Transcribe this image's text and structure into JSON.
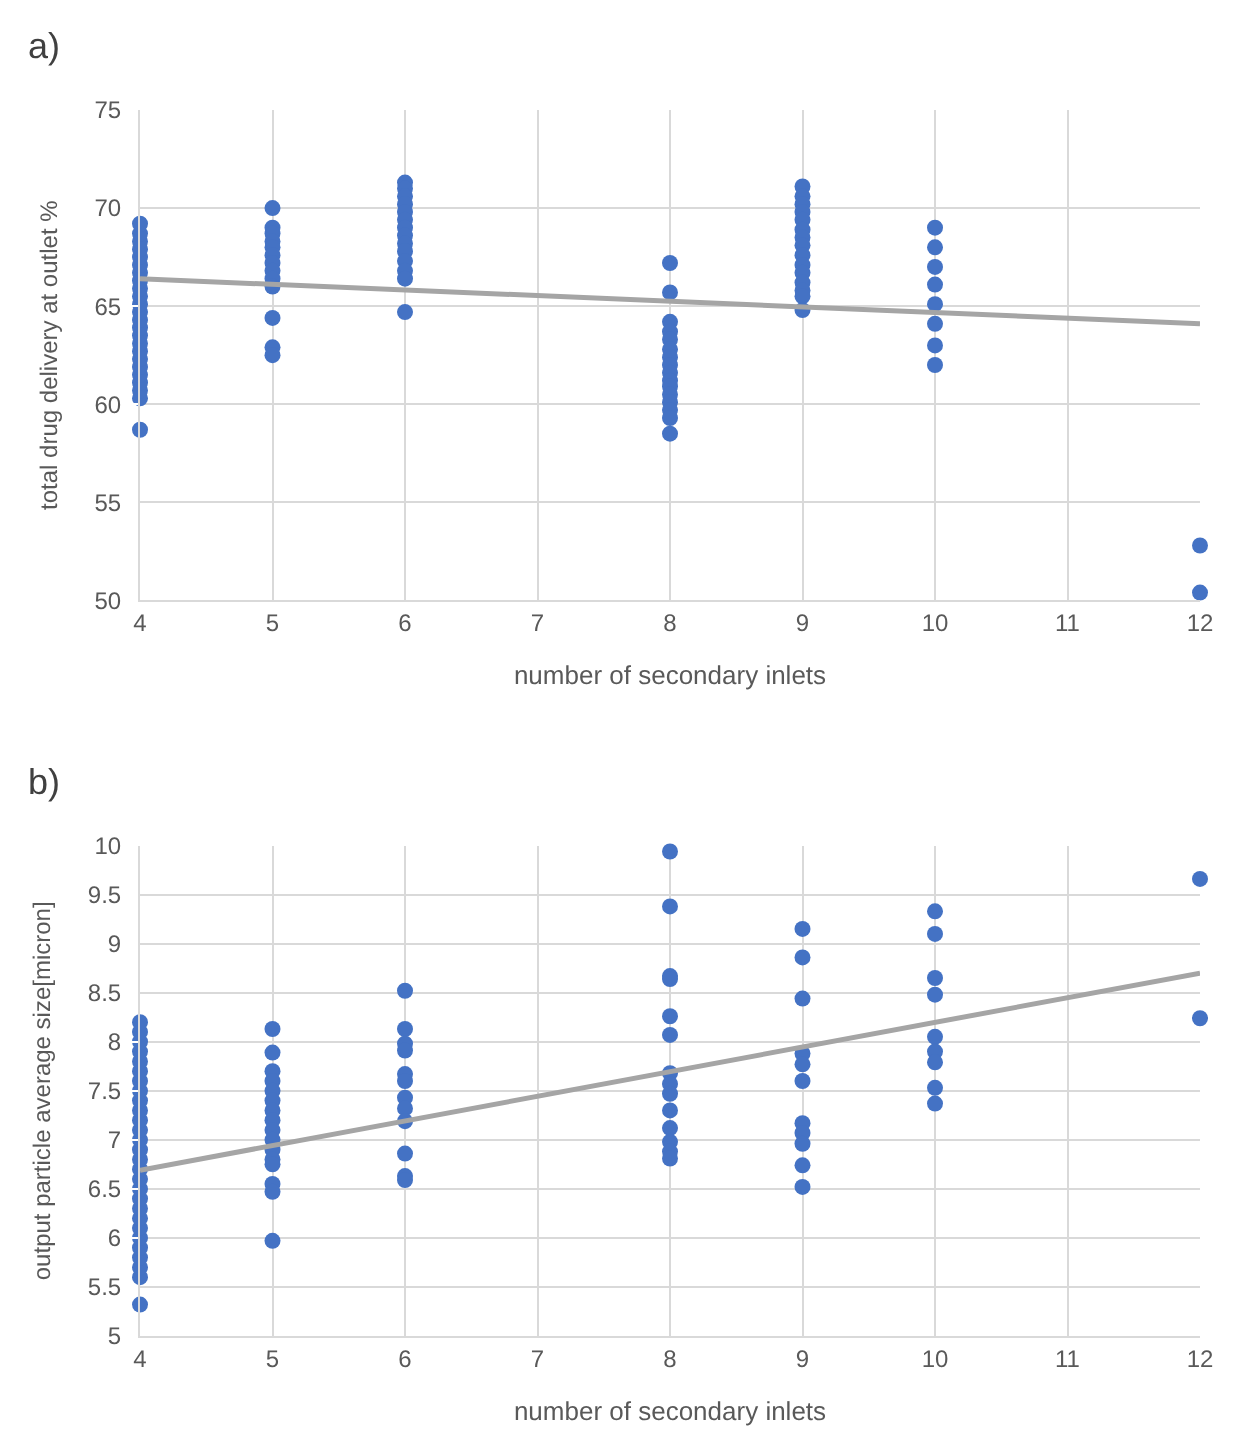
{
  "chart_data": [
    {
      "type": "scatter",
      "title": "a)",
      "xlabel": "number of secondary inlets",
      "ylabel": "total drug delivery at outlet %",
      "xlim": [
        4,
        12
      ],
      "xticks": [
        4,
        5,
        6,
        7,
        8,
        9,
        10,
        11,
        12
      ],
      "ylim": [
        50,
        75
      ],
      "yticks": [
        50,
        55,
        60,
        65,
        70,
        75
      ],
      "grid": true,
      "series": [
        {
          "color": "#4472c4",
          "marker": "circle",
          "x": [
            4,
            4,
            4,
            4,
            4,
            4,
            4,
            4,
            4,
            4,
            4,
            4,
            4,
            4,
            4,
            4,
            4,
            4,
            4,
            4,
            4,
            4,
            4,
            4,
            5,
            5,
            5,
            5,
            5,
            5,
            5,
            5,
            5,
            5,
            5,
            5,
            5,
            6,
            6,
            6,
            6,
            6,
            6,
            6,
            6,
            6,
            6,
            6,
            6,
            6,
            6,
            8,
            8,
            8,
            8,
            8,
            8,
            8,
            8,
            8,
            8,
            8,
            8,
            8,
            8,
            8,
            8,
            9,
            9,
            9,
            9,
            9,
            9,
            9,
            9,
            9,
            9,
            9,
            9,
            9,
            9,
            9,
            10,
            10,
            10,
            10,
            10,
            10,
            10,
            10,
            12,
            12
          ],
          "values": [
            58.7,
            60.3,
            60.7,
            61.1,
            61.5,
            61.9,
            62.3,
            62.7,
            63.1,
            63.5,
            63.9,
            64.3,
            64.7,
            65.1,
            65.5,
            65.9,
            66.3,
            66.7,
            67.1,
            67.5,
            67.9,
            68.3,
            68.7,
            69.2,
            70.0,
            69.0,
            68.7,
            68.3,
            68.0,
            67.6,
            67.2,
            66.8,
            66.4,
            66.0,
            64.4,
            62.9,
            62.5,
            71.3,
            71.0,
            70.6,
            70.2,
            69.8,
            69.4,
            69.0,
            68.6,
            68.2,
            67.8,
            67.3,
            66.8,
            66.4,
            64.7,
            67.2,
            65.7,
            64.2,
            63.7,
            63.3,
            62.8,
            62.4,
            62.0,
            61.6,
            61.2,
            60.9,
            60.5,
            60.1,
            59.7,
            59.3,
            58.5,
            71.1,
            70.6,
            70.2,
            69.8,
            69.4,
            68.9,
            68.5,
            68.1,
            67.6,
            67.1,
            66.7,
            66.2,
            65.8,
            65.5,
            64.8,
            69.0,
            68.0,
            67.0,
            66.1,
            65.1,
            64.1,
            63.0,
            62.0,
            52.8,
            50.4
          ]
        },
        {
          "type": "line",
          "marker": "none",
          "color": "#a5a5a5",
          "x": [
            4,
            12
          ],
          "values": [
            66.4,
            64.1
          ]
        }
      ]
    },
    {
      "type": "scatter",
      "title": "b)",
      "xlabel": "number of secondary inlets",
      "ylabel": "output particle average size[micron]",
      "xlim": [
        4,
        12
      ],
      "xticks": [
        4,
        5,
        6,
        7,
        8,
        9,
        10,
        11,
        12
      ],
      "ylim": [
        5,
        10
      ],
      "yticks": [
        5,
        5.5,
        6,
        6.5,
        7,
        7.5,
        8,
        8.5,
        9,
        9.5,
        10
      ],
      "grid": true,
      "series": [
        {
          "color": "#4472c4",
          "marker": "circle",
          "x": [
            4,
            4,
            4,
            4,
            4,
            4,
            4,
            4,
            4,
            4,
            4,
            4,
            4,
            4,
            4,
            4,
            4,
            4,
            4,
            4,
            4,
            4,
            4,
            4,
            4,
            4,
            4,
            4,
            5,
            5,
            5,
            5,
            5,
            5,
            5,
            5,
            5,
            5,
            5,
            5,
            5,
            5,
            5,
            5,
            6,
            6,
            6,
            6,
            6,
            6,
            6,
            6,
            6,
            6,
            6,
            6,
            8,
            8,
            8,
            8,
            8,
            8,
            8,
            8,
            8,
            8,
            8,
            8,
            8,
            8,
            9,
            9,
            9,
            9,
            9,
            9,
            9,
            9,
            9,
            9,
            9,
            10,
            10,
            10,
            10,
            10,
            10,
            10,
            10,
            10,
            12,
            12
          ],
          "values": [
            5.32,
            5.6,
            5.7,
            5.8,
            5.9,
            6.0,
            6.1,
            6.2,
            6.3,
            6.4,
            6.5,
            6.6,
            6.7,
            6.8,
            6.9,
            7.0,
            7.1,
            7.2,
            7.3,
            7.4,
            7.5,
            7.6,
            7.7,
            7.8,
            7.9,
            8.0,
            8.1,
            8.2,
            8.13,
            7.89,
            7.7,
            7.6,
            7.5,
            7.4,
            7.3,
            7.2,
            7.1,
            7.0,
            6.9,
            6.8,
            6.75,
            6.55,
            6.47,
            5.97,
            8.52,
            8.13,
            7.98,
            7.91,
            7.67,
            7.6,
            7.43,
            7.32,
            7.19,
            6.86,
            6.63,
            6.59,
            9.94,
            9.38,
            8.67,
            8.64,
            8.26,
            8.07,
            7.68,
            7.57,
            7.47,
            7.3,
            7.12,
            6.98,
            6.88,
            6.81,
            9.15,
            8.86,
            8.44,
            7.88,
            7.77,
            7.6,
            7.17,
            7.07,
            6.96,
            6.74,
            6.52,
            9.33,
            9.1,
            8.65,
            8.48,
            8.05,
            7.9,
            7.79,
            7.53,
            7.37,
            9.66,
            8.24
          ]
        },
        {
          "type": "line",
          "marker": "none",
          "color": "#a5a5a5",
          "x": [
            4,
            12
          ],
          "values": [
            6.69,
            8.7
          ]
        }
      ]
    }
  ]
}
